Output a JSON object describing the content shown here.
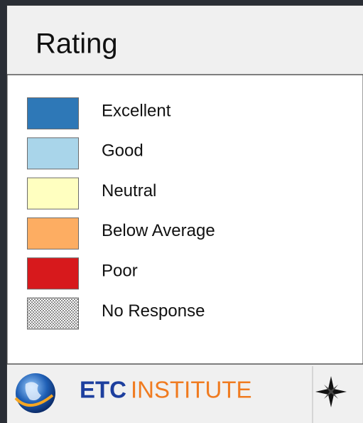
{
  "legend": {
    "title": "Rating",
    "items": [
      {
        "label": "Excellent",
        "color": "#2e78b7"
      },
      {
        "label": "Good",
        "color": "#a9d5ea"
      },
      {
        "label": "Neutral",
        "color": "#ffffc0"
      },
      {
        "label": "Below Average",
        "color": "#fdad62"
      },
      {
        "label": "Poor",
        "color": "#d7191c"
      },
      {
        "label": "No Response"
      }
    ]
  },
  "footer": {
    "logo_part1": "ETC",
    "logo_part2": "INSTITUTE"
  }
}
